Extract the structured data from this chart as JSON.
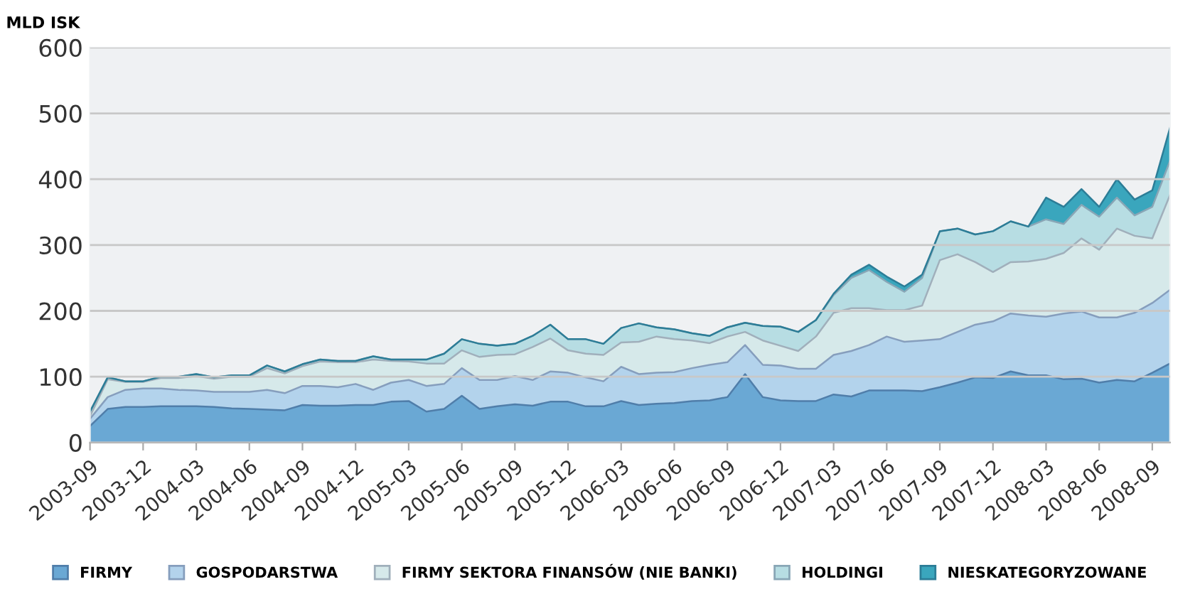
{
  "chart_data": {
    "type": "area",
    "stacked": true,
    "ylabel": "MLD ISK",
    "categories": [
      "2003-09",
      null,
      null,
      "2003-12",
      null,
      null,
      "2004-03",
      null,
      null,
      "2004-06",
      null,
      null,
      "2004-09",
      null,
      null,
      "2004-12",
      null,
      null,
      "2005-03",
      null,
      null,
      "2005-06",
      null,
      null,
      "2005-09",
      null,
      null,
      "2005-12",
      null,
      null,
      "2006-03",
      null,
      null,
      "2006-06",
      null,
      null,
      "2006-09",
      null,
      null,
      "2006-12",
      null,
      null,
      "2007-03",
      null,
      null,
      "2007-06",
      null,
      null,
      "2007-09",
      null,
      null,
      "2007-12",
      null,
      null,
      "2008-03",
      null,
      null,
      "2008-06",
      null,
      null,
      "2008-09",
      null
    ],
    "series": [
      {
        "name": "FIRMY",
        "color": "#6aa8d4",
        "values": [
          25,
          51,
          54,
          54,
          55,
          55,
          55,
          54,
          52,
          51,
          50,
          49,
          57,
          56,
          56,
          57,
          57,
          62,
          63,
          47,
          51,
          71,
          51,
          55,
          58,
          56,
          62,
          62,
          55,
          55,
          63,
          57,
          59,
          60,
          63,
          64,
          69,
          104,
          69,
          64,
          63,
          63,
          73,
          70,
          79,
          79,
          79,
          78,
          84,
          91,
          99,
          98,
          108,
          102,
          102,
          96,
          97,
          91,
          95,
          93,
          106,
          120
        ]
      },
      {
        "name": "GOSPODARSTWA",
        "color": "#b3d3ec",
        "values": [
          11,
          18,
          26,
          28,
          27,
          25,
          24,
          23,
          25,
          26,
          30,
          26,
          29,
          30,
          28,
          32,
          23,
          29,
          32,
          39,
          38,
          42,
          44,
          40,
          43,
          39,
          46,
          44,
          44,
          38,
          52,
          47,
          47,
          47,
          50,
          54,
          53,
          44,
          49,
          53,
          49,
          49,
          60,
          69,
          69,
          82,
          74,
          77,
          73,
          77,
          80,
          86,
          88,
          91,
          89,
          100,
          102,
          99,
          95,
          104,
          106,
          112
        ]
      },
      {
        "name": "FIRMY SEKTORA FINANSÓW (NIE BANKI)",
        "color": "#d6e9ea",
        "values": [
          4,
          27,
          12,
          10,
          16,
          18,
          22,
          20,
          23,
          23,
          33,
          30,
          30,
          37,
          38,
          33,
          46,
          33,
          28,
          34,
          31,
          27,
          35,
          38,
          33,
          50,
          50,
          34,
          36,
          40,
          37,
          49,
          55,
          50,
          42,
          33,
          39,
          20,
          37,
          30,
          27,
          49,
          64,
          65,
          56,
          40,
          48,
          53,
          120,
          118,
          95,
          75,
          78,
          82,
          88,
          92,
          111,
          103,
          135,
          117,
          98,
          144
        ]
      },
      {
        "name": "HOLDINGI",
        "color": "#b7dde3",
        "values": [
          7,
          3,
          1,
          1,
          2,
          2,
          3,
          2,
          2,
          2,
          4,
          3,
          3,
          3,
          2,
          2,
          5,
          2,
          3,
          6,
          15,
          17,
          20,
          14,
          16,
          17,
          21,
          17,
          22,
          17,
          22,
          28,
          14,
          15,
          11,
          11,
          14,
          14,
          22,
          29,
          29,
          25,
          27,
          46,
          58,
          43,
          28,
          42,
          44,
          39,
          42,
          62,
          62,
          53,
          60,
          44,
          51,
          50,
          47,
          31,
          48,
          52
        ]
      },
      {
        "name": "NIESKATEGORYZOWANE",
        "color": "#3aa6bd",
        "values": [
          0,
          0,
          0,
          0,
          0,
          0,
          0,
          0,
          0,
          0,
          0,
          0,
          0,
          0,
          0,
          0,
          0,
          0,
          0,
          0,
          0,
          0,
          0,
          0,
          0,
          0,
          0,
          0,
          0,
          0,
          0,
          0,
          0,
          0,
          0,
          0,
          0,
          0,
          0,
          0,
          0,
          0,
          2,
          5,
          8,
          8,
          8,
          5,
          0,
          0,
          0,
          0,
          0,
          0,
          33,
          26,
          24,
          15,
          28,
          24,
          25,
          50
        ]
      }
    ],
    "ylim": [
      0,
      600
    ],
    "yticks": [
      0,
      100,
      200,
      300,
      400,
      500,
      600
    ],
    "grid": "y",
    "legend": "bottom"
  }
}
